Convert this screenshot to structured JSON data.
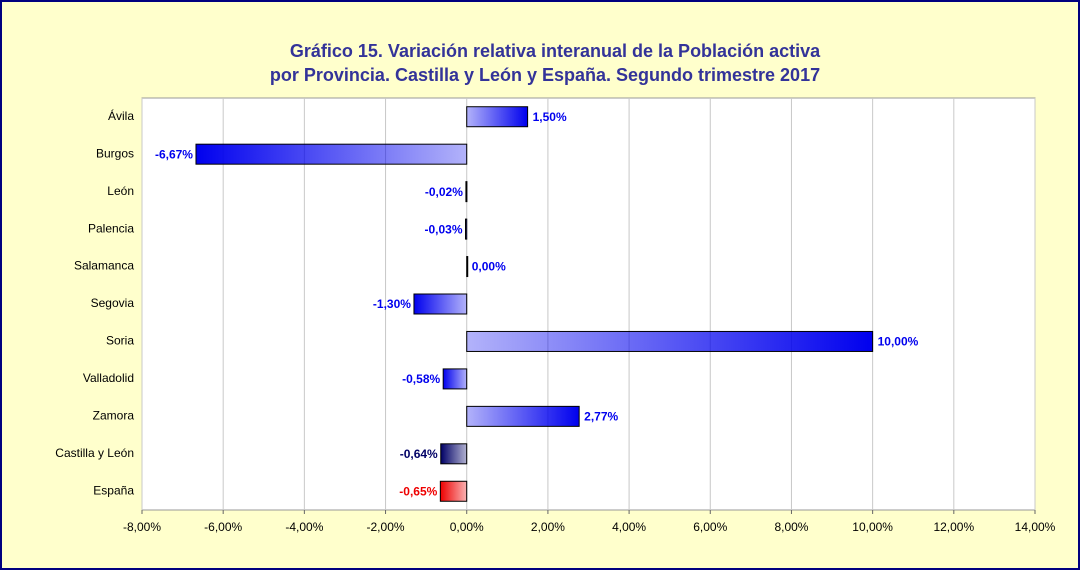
{
  "chart_data": {
    "type": "barh",
    "title": [
      "Gráfico 15. Variación relativa interanual de la Población activa",
      "por Provincia. Castilla y León y España. Segundo trimestre 2017"
    ],
    "categories": [
      "Ávila",
      "Burgos",
      "León",
      "Palencia",
      "Salamanca",
      "Segovia",
      "Soria",
      "Valladolid",
      "Zamora",
      "Castilla y León",
      "España"
    ],
    "values": [
      1.5,
      -6.67,
      -0.02,
      -0.03,
      0.0,
      -1.3,
      10.0,
      -0.58,
      2.77,
      -0.64,
      -0.65
    ],
    "value_labels": [
      "1,50%",
      "-6,67%",
      "-0,02%",
      "-0,03%",
      "0,00%",
      "-1,30%",
      "10,00%",
      "-0,58%",
      "2,77%",
      "-0,64%",
      "-0,65%"
    ],
    "colors": [
      "#0000ee",
      "#0000ee",
      "#0000ee",
      "#0000ee",
      "#0000ee",
      "#0000ee",
      "#0000ee",
      "#0000ee",
      "#0000ee",
      "#000066",
      "#ee0000"
    ],
    "xlim": [
      -8,
      14
    ],
    "xticks": [
      {
        "value": -8,
        "label": "-8,00%"
      },
      {
        "value": -6,
        "label": "-6,00%"
      },
      {
        "value": -4,
        "label": "-4,00%"
      },
      {
        "value": -2,
        "label": "-2,00%"
      },
      {
        "value": 0,
        "label": "0,00%"
      },
      {
        "value": 2,
        "label": "2,00%"
      },
      {
        "value": 4,
        "label": "4,00%"
      },
      {
        "value": 6,
        "label": "6,00%"
      },
      {
        "value": 8,
        "label": "8,00%"
      },
      {
        "value": 10,
        "label": "10,00%"
      },
      {
        "value": 12,
        "label": "12,00%"
      },
      {
        "value": 14,
        "label": "14,00%"
      }
    ],
    "grid": true
  }
}
